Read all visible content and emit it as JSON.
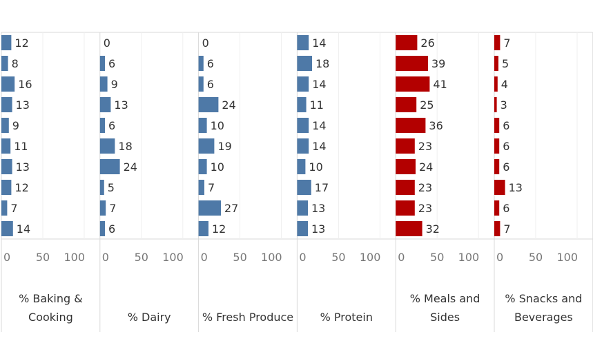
{
  "chart_data": {
    "type": "bar",
    "orientation": "horizontal",
    "rows": 10,
    "axis_range": [
      0,
      100
    ],
    "axis_ticks": [
      "0",
      "50",
      "100"
    ],
    "grid": true,
    "panels": [
      {
        "label_lines": [
          "% Baking &",
          "Cooking"
        ],
        "color": "#4e79a7",
        "values": [
          12,
          8,
          16,
          13,
          9,
          11,
          13,
          12,
          7,
          14
        ]
      },
      {
        "label_lines": [
          "% Dairy"
        ],
        "color": "#4e79a7",
        "values": [
          0,
          6,
          9,
          13,
          6,
          18,
          24,
          5,
          7,
          6
        ]
      },
      {
        "label_lines": [
          "% Fresh Produce"
        ],
        "color": "#4e79a7",
        "values": [
          0,
          6,
          6,
          24,
          10,
          19,
          10,
          7,
          27,
          12
        ]
      },
      {
        "label_lines": [
          "% Protein"
        ],
        "color": "#4e79a7",
        "values": [
          14,
          18,
          14,
          11,
          14,
          14,
          10,
          17,
          13,
          13
        ]
      },
      {
        "label_lines": [
          "% Meals and",
          "Sides"
        ],
        "color": "#b30000",
        "values": [
          26,
          39,
          41,
          25,
          36,
          23,
          24,
          23,
          23,
          32
        ]
      },
      {
        "label_lines": [
          "% Snacks and",
          "Beverages"
        ],
        "color": "#b30000",
        "values": [
          7,
          5,
          4,
          3,
          6,
          6,
          6,
          13,
          6,
          7
        ]
      }
    ]
  }
}
